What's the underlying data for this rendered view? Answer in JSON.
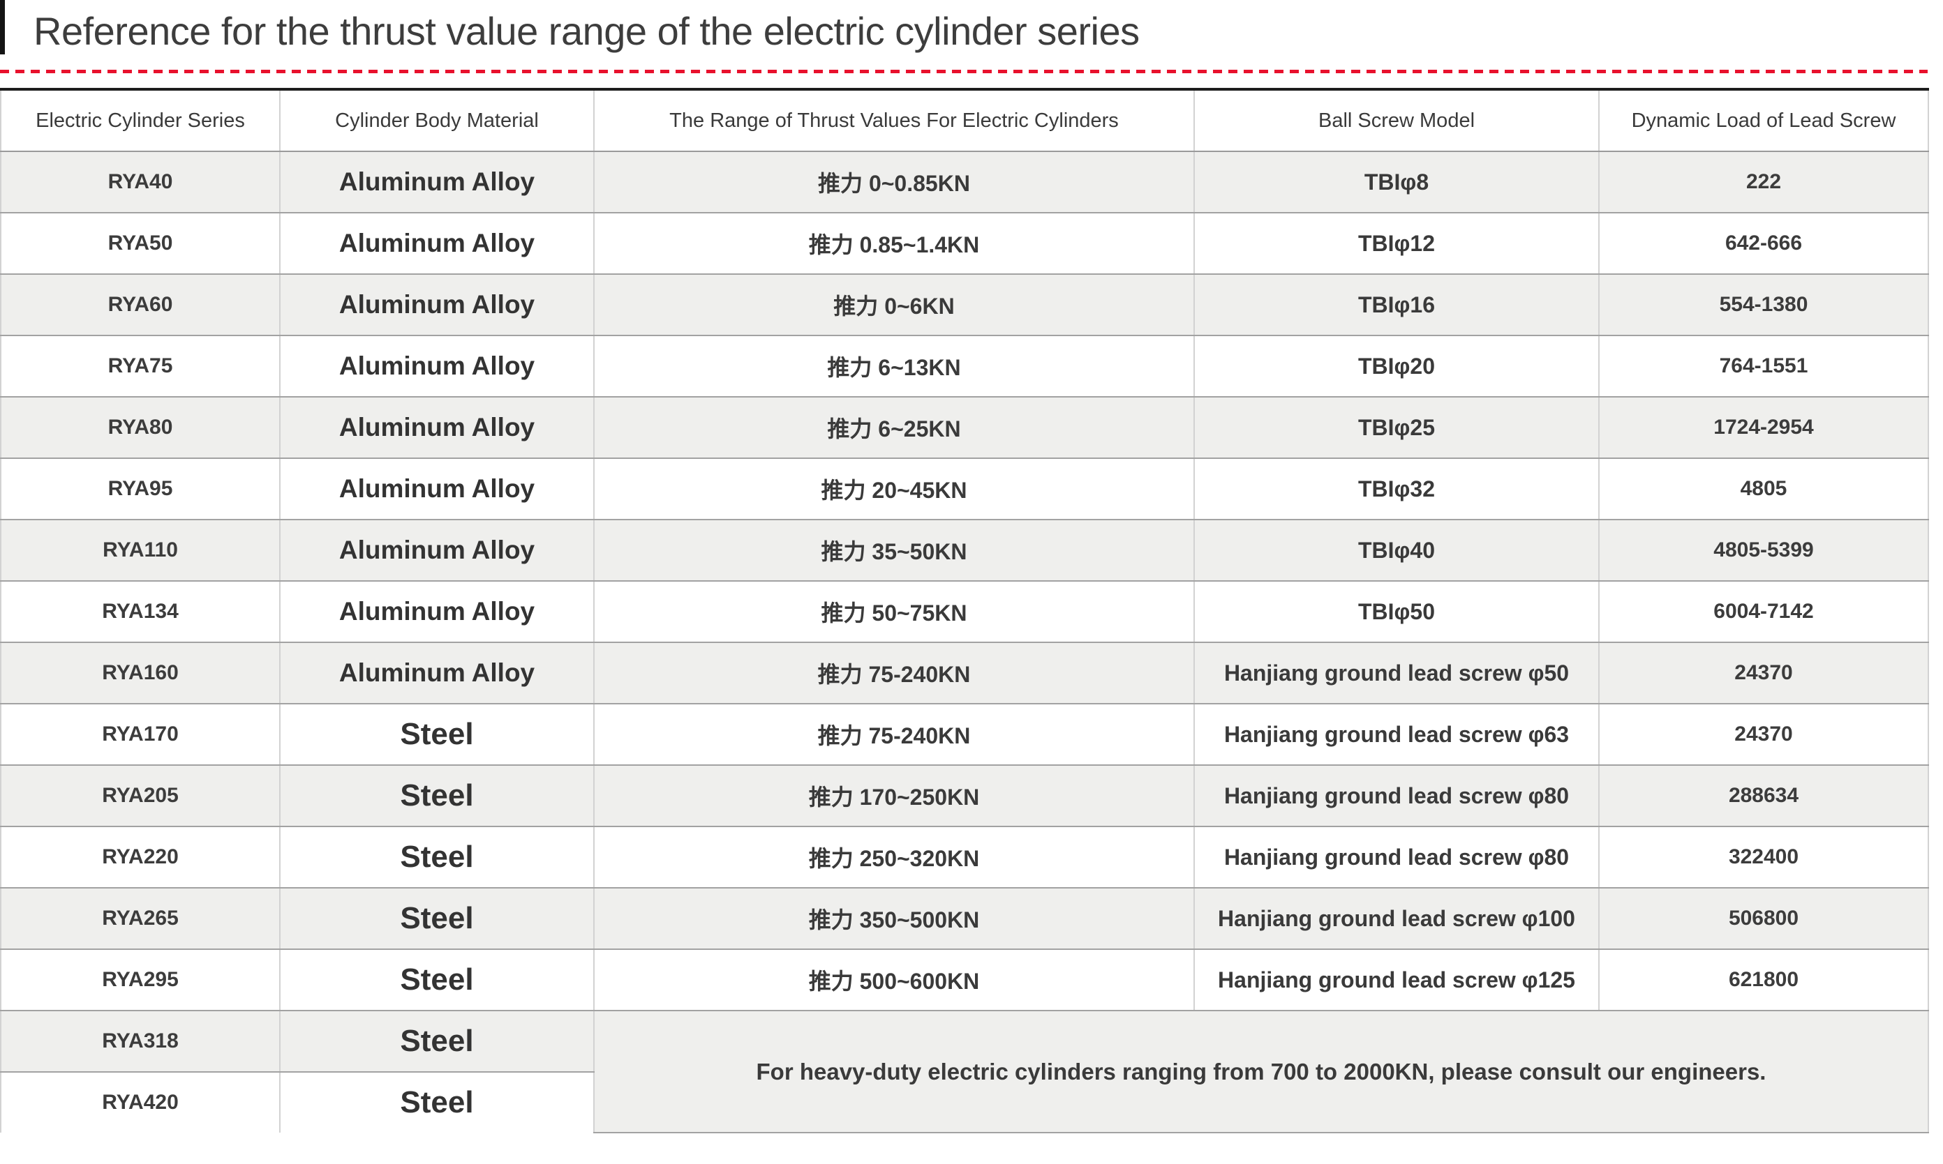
{
  "title": "Reference for the thrust value range of the electric cylinder series",
  "colors": {
    "accent_red": "#e8112d",
    "table_top_border": "#1d1d1d",
    "row_stripe": "#efefed",
    "horizontal_border": "#a2a2a2",
    "vertical_border": "#d2d2d2",
    "text": "#3a3a3a"
  },
  "table": {
    "columns": [
      "Electric Cylinder Series",
      "Cylinder Body Material",
      "The Range of Thrust Values For Electric Cylinders",
      "Ball Screw Model",
      "Dynamic Load of Lead Screw"
    ],
    "rows": [
      {
        "series": "RYA40",
        "material": "Aluminum Alloy",
        "thrust": "推力 0~0.85KN",
        "screw": "TBIφ8",
        "load": "222"
      },
      {
        "series": "RYA50",
        "material": "Aluminum Alloy",
        "thrust": "推力 0.85~1.4KN",
        "screw": "TBIφ12",
        "load": "642-666"
      },
      {
        "series": "RYA60",
        "material": "Aluminum Alloy",
        "thrust": "推力 0~6KN",
        "screw": "TBIφ16",
        "load": "554-1380"
      },
      {
        "series": "RYA75",
        "material": "Aluminum Alloy",
        "thrust": "推力 6~13KN",
        "screw": "TBIφ20",
        "load": "764-1551"
      },
      {
        "series": "RYA80",
        "material": "Aluminum Alloy",
        "thrust": "推力 6~25KN",
        "screw": "TBIφ25",
        "load": "1724-2954"
      },
      {
        "series": "RYA95",
        "material": "Aluminum Alloy",
        "thrust": "推力 20~45KN",
        "screw": "TBIφ32",
        "load": "4805"
      },
      {
        "series": "RYA110",
        "material": "Aluminum Alloy",
        "thrust": "推力 35~50KN",
        "screw": "TBIφ40",
        "load": "4805-5399"
      },
      {
        "series": "RYA134",
        "material": "Aluminum Alloy",
        "thrust": "推力 50~75KN",
        "screw": "TBIφ50",
        "load": "6004-7142"
      },
      {
        "series": "RYA160",
        "material": "Aluminum Alloy",
        "thrust": "推力 75-240KN",
        "screw": "Hanjiang ground lead screw φ50",
        "load": "24370"
      },
      {
        "series": "RYA170",
        "material": "Steel",
        "thrust": "推力 75-240KN",
        "screw": "Hanjiang ground lead screw φ63",
        "load": "24370"
      },
      {
        "series": "RYA205",
        "material": "Steel",
        "thrust": "推力 170~250KN",
        "screw": "Hanjiang ground lead screw φ80",
        "load": "288634"
      },
      {
        "series": "RYA220",
        "material": "Steel",
        "thrust": "推力 250~320KN",
        "screw": "Hanjiang ground lead screw φ80",
        "load": "322400"
      },
      {
        "series": "RYA265",
        "material": "Steel",
        "thrust": "推力 350~500KN",
        "screw": "Hanjiang ground lead screw φ100",
        "load": "506800"
      },
      {
        "series": "RYA295",
        "material": "Steel",
        "thrust": "推力 500~600KN",
        "screw": "Hanjiang ground lead screw φ125",
        "load": "621800"
      },
      {
        "series": "RYA318",
        "material": "Steel"
      },
      {
        "series": "RYA420",
        "material": "Steel"
      }
    ],
    "note": "For heavy-duty electric cylinders ranging from 700 to 2000KN, please consult our engineers."
  }
}
